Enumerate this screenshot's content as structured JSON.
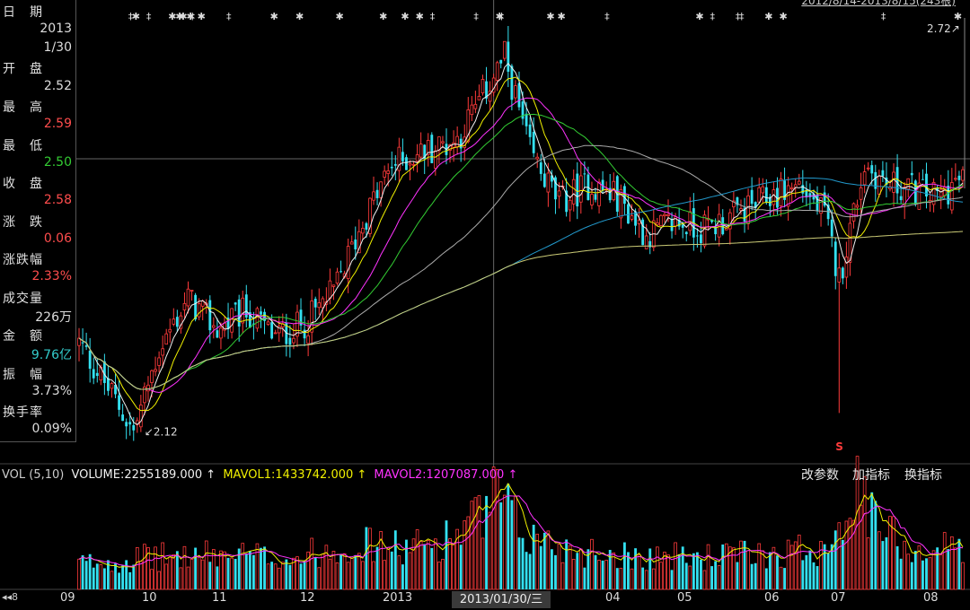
{
  "info_panel": {
    "rows": [
      {
        "label": "日　期",
        "value": "2013",
        "value2": "1/30",
        "color": "#e0e0e0"
      },
      {
        "label": "开　盘",
        "value": "2.52",
        "color": "#e0e0e0"
      },
      {
        "label": "最　高",
        "value": "2.59",
        "color": "#ff4d4d"
      },
      {
        "label": "最　低",
        "value": "2.50",
        "color": "#33cc33"
      },
      {
        "label": "收　盘",
        "value": "2.58",
        "color": "#ff4d4d"
      },
      {
        "label": "涨　跌",
        "value": "0.06",
        "color": "#ff4d4d"
      },
      {
        "label": "涨跌幅",
        "value": "2.33%",
        "color": "#ff4d4d"
      },
      {
        "label": "成交量",
        "value": "226万",
        "color": "#e0e0e0"
      },
      {
        "label": "金　额",
        "value": "9.76亿",
        "color": "#33cccc"
      },
      {
        "label": "振　幅",
        "value": "3.73%",
        "color": "#e0e0e0"
      },
      {
        "label": "换手率",
        "value": "0.09%",
        "color": "#e0e0e0"
      }
    ]
  },
  "date_range": "2012/8/14-2013/8/15(243根)",
  "volume_header": {
    "name": "VOL (5,10)",
    "volume": "VOLUME:2255189.000 ↑",
    "mavol1": "MAVOL1:1433742.000 ↑",
    "mavol2": "MAVOL2:1207087.000 ↑"
  },
  "buttons": {
    "change_params": "改参数",
    "add_indicator": "加指标",
    "switch_indicator": "换指标"
  },
  "cursor_date": "2013/01/30/三",
  "x_axis": [
    "09",
    "10",
    "11",
    "12",
    "2013",
    "04",
    "05",
    "06",
    "07",
    "08"
  ],
  "nav": "◂◂8",
  "colors": {
    "up": "#ff3b3b",
    "down": "#33e0f0",
    "ma5": "#f0f0f0",
    "ma10": "#f0f000",
    "ma20": "#ff33ff",
    "ma30": "#33cc33",
    "ma60": "#aaaaaa",
    "ma120": "#2299cc",
    "ma250": "#cccc77"
  },
  "chart_data": {
    "type": "candlestick",
    "price_labels": {
      "high": "2.72↗",
      "low": "↙2.12"
    },
    "price_range": [
      2.08,
      2.78
    ],
    "cursor_price": 2.55,
    "anchors": [
      [
        0,
        2.26
      ],
      [
        10,
        2.17
      ],
      [
        15,
        2.12
      ],
      [
        22,
        2.25
      ],
      [
        30,
        2.33
      ],
      [
        38,
        2.28
      ],
      [
        46,
        2.31
      ],
      [
        54,
        2.27
      ],
      [
        62,
        2.29
      ],
      [
        70,
        2.34
      ],
      [
        78,
        2.45
      ],
      [
        86,
        2.54
      ],
      [
        94,
        2.56
      ],
      [
        104,
        2.58
      ],
      [
        112,
        2.66
      ],
      [
        117,
        2.71
      ],
      [
        124,
        2.56
      ],
      [
        132,
        2.48
      ],
      [
        140,
        2.51
      ],
      [
        148,
        2.49
      ],
      [
        156,
        2.43
      ],
      [
        164,
        2.45
      ],
      [
        172,
        2.44
      ],
      [
        180,
        2.46
      ],
      [
        190,
        2.49
      ],
      [
        198,
        2.51
      ],
      [
        205,
        2.46
      ],
      [
        209,
        2.36
      ],
      [
        212,
        2.44
      ],
      [
        216,
        2.54
      ],
      [
        222,
        2.51
      ],
      [
        230,
        2.5
      ],
      [
        236,
        2.49
      ],
      [
        243,
        2.52
      ]
    ],
    "volume_anchors": [
      [
        0,
        0.9
      ],
      [
        20,
        1.1
      ],
      [
        40,
        1.2
      ],
      [
        60,
        1.1
      ],
      [
        75,
        1.6
      ],
      [
        90,
        1.4
      ],
      [
        100,
        1.7
      ],
      [
        110,
        2.4
      ],
      [
        115,
        3.2
      ],
      [
        122,
        1.9
      ],
      [
        135,
        1.4
      ],
      [
        150,
        1.2
      ],
      [
        170,
        1.1
      ],
      [
        195,
        1.3
      ],
      [
        205,
        1.5
      ],
      [
        210,
        2.8
      ],
      [
        214,
        3.3
      ],
      [
        220,
        2.1
      ],
      [
        232,
        1.3
      ],
      [
        243,
        1.6
      ]
    ]
  }
}
